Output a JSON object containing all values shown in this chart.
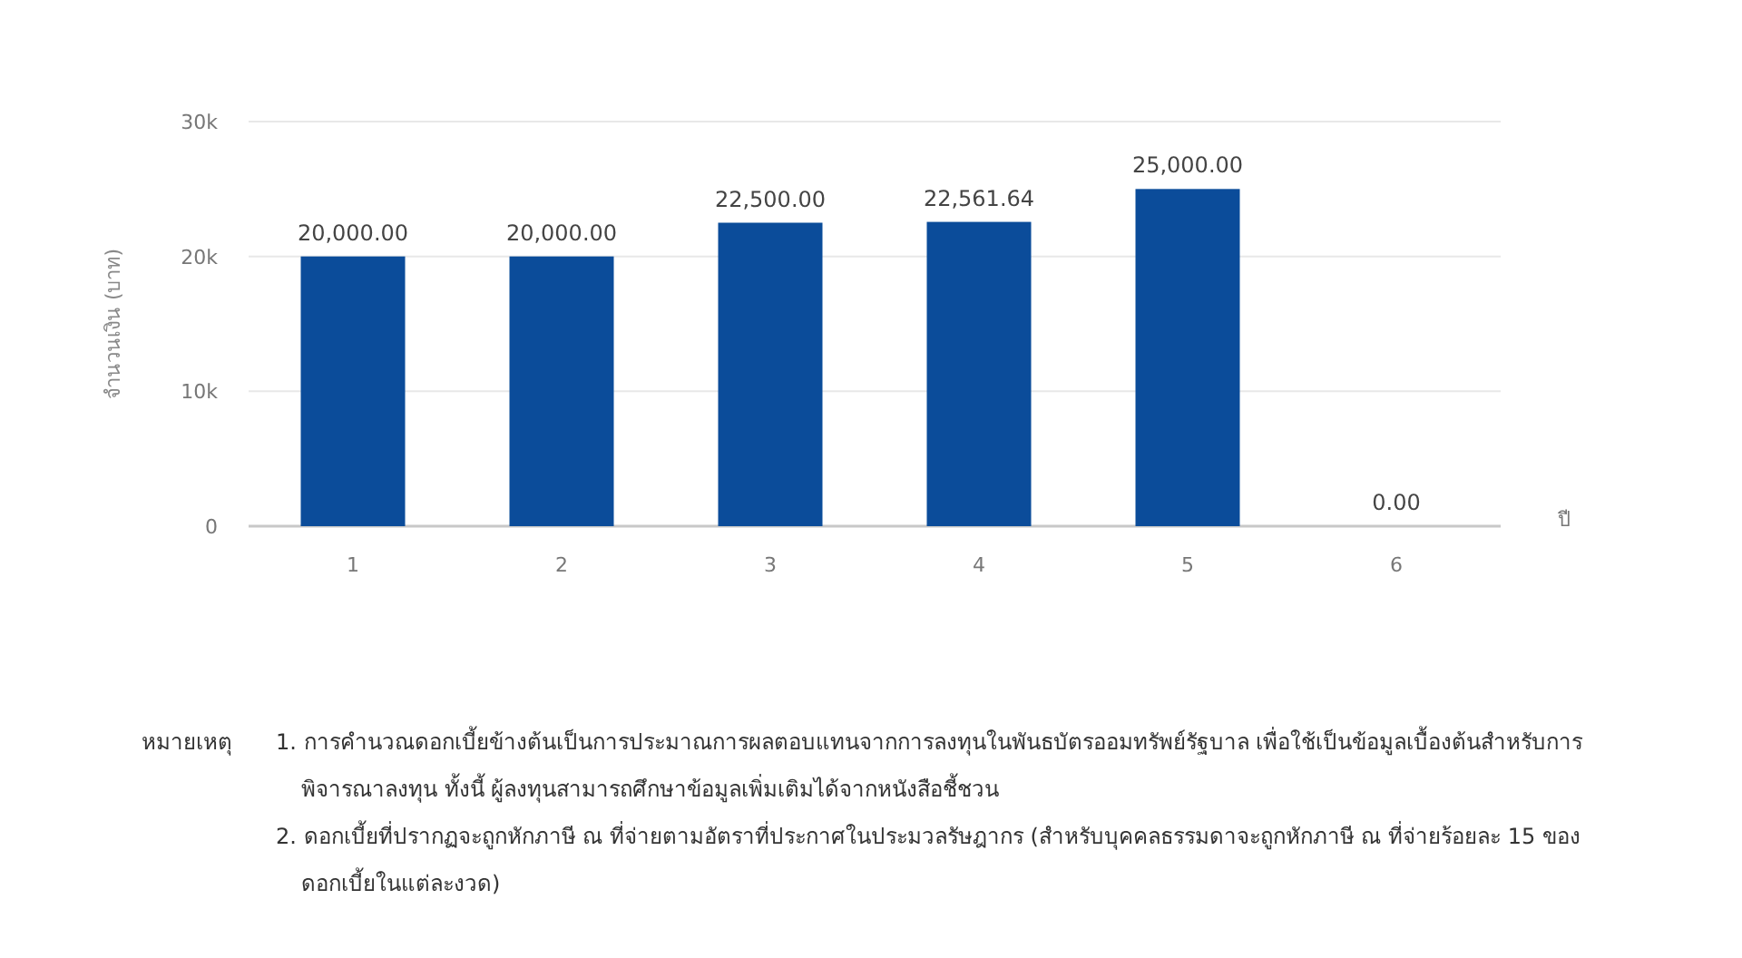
{
  "chart_data": {
    "type": "bar",
    "ylabel": "จำนวนเงิน (บาท)",
    "xlabel": "ปี",
    "categories": [
      "1",
      "2",
      "3",
      "4",
      "5",
      "6"
    ],
    "values": [
      20000,
      20000,
      22500,
      22561.64,
      25000,
      0
    ],
    "value_labels": [
      "20,000.00",
      "20,000.00",
      "22,500.00",
      "22,561.64",
      "25,000.00",
      "0.00"
    ],
    "color": "#0b4c9a",
    "ylim": [
      0,
      30000
    ],
    "yticks": [
      0,
      {
        "value": 10000,
        "label": "10k"
      },
      {
        "value": 20000,
        "label": "20k"
      },
      {
        "value": 30000,
        "label": "30k"
      }
    ],
    "grid": "y",
    "annotations": [
      "หมายเหตุ",
      "1. การคำนวณดอกเบี้ยข้างต้นเป็นการประมาณการผลตอบแทนจากการลงทุนในพันธบัตรออมทรัพย์รัฐบาล เพื่อใช้เป็นข้อมูลเบื้องต้นสำหรับการพิจารณาลงทุน ทั้งนี้ ผู้ลงทุนสามารถศึกษาข้อมูลเพิ่มเติมได้จากหนังสือชี้ชวน",
      "2. ดอกเบี้ยที่ปรากฏจะถูกหักภาษี ณ ที่จ่ายตามอัตราที่ประกาศในประมวลรัษฎากร (สำหรับบุคคลธรรมดาจะถูกหักภาษี ณ ที่จ่ายร้อยละ 15 ของดอกเบี้ยในแต่ละงวด)"
    ]
  }
}
